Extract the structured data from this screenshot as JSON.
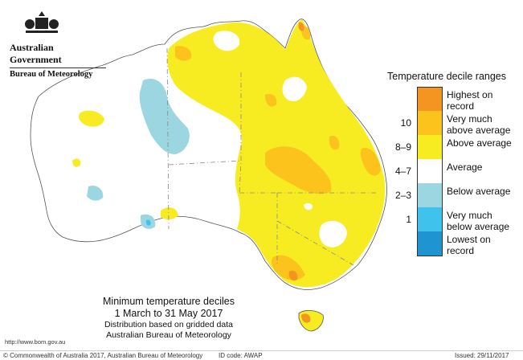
{
  "header": {
    "government": "Australian Government",
    "bureau": "Bureau of Meteorology",
    "emblem_icon": "coat-of-arms-icon"
  },
  "legend": {
    "title": "Temperature decile ranges",
    "items": [
      {
        "key": "",
        "label": "Highest on record",
        "color": "#f39520"
      },
      {
        "key": "10",
        "label": "Very much above average",
        "color": "#fbc31c"
      },
      {
        "key": "8–9",
        "label": "Above average",
        "color": "#f7ec21"
      },
      {
        "key": "4–7",
        "label": "Average",
        "color": "#ffffff"
      },
      {
        "key": "2–3",
        "label": "Below average",
        "color": "#9cd6e1"
      },
      {
        "key": "1",
        "label": "Very much below average",
        "color": "#3fc3ec"
      },
      {
        "key": "",
        "label": "Lowest on record",
        "color": "#1e94d0"
      }
    ]
  },
  "caption": {
    "title": "Minimum temperature deciles",
    "period": "1 March to 31 May 2017",
    "note1": "Distribution based on gridded data",
    "note2": "Australian Bureau of Meteorology"
  },
  "url": "http://www.bom.gov.au",
  "footer": {
    "copyright": "© Commonwealth of Australia 2017, Australian Bureau of Meteorology",
    "id_code": "ID code: AWAP",
    "issued": "Issued: 29/11/2017"
  }
}
